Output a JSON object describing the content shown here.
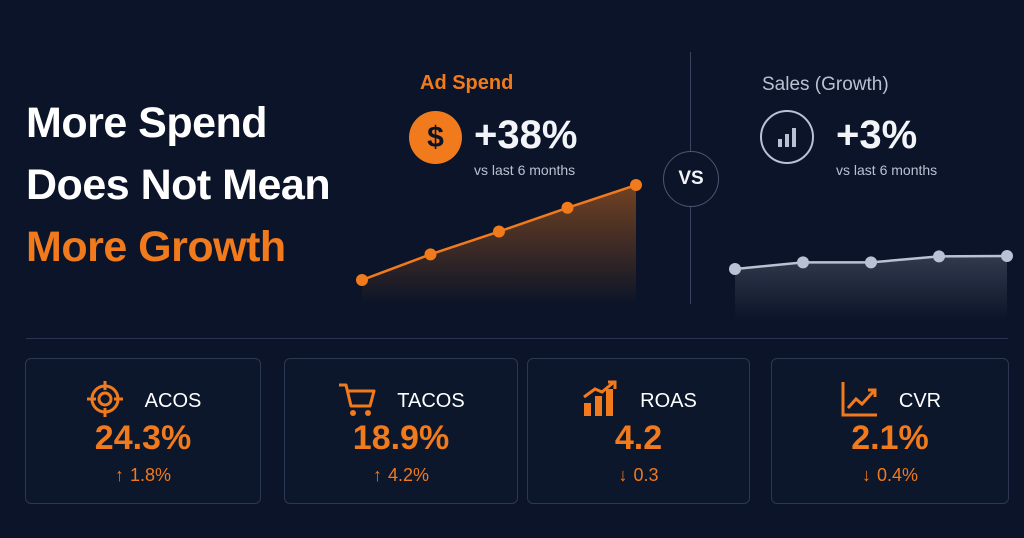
{
  "headline": {
    "line1": "More Spend",
    "line2": "Does Not Mean",
    "line3": "More Growth"
  },
  "vs_label": "VS",
  "ad_spend": {
    "title": "Ad Spend",
    "icon": "dollar-icon",
    "icon_glyph": "$",
    "change": "+38%",
    "period": "vs last 6 months",
    "color": "#f07a1c"
  },
  "sales": {
    "title": "Sales (Growth)",
    "icon": "bar-chart-icon",
    "change": "+3%",
    "period": "vs last 6 months",
    "color": "#b9c2d3"
  },
  "chart_data": [
    {
      "type": "area",
      "x": [
        1,
        2,
        3,
        4,
        5
      ],
      "values": [
        0,
        0.27,
        0.51,
        0.76,
        1
      ],
      "grid": false
    },
    {
      "type": "area",
      "x": [
        1,
        2,
        3,
        4,
        5
      ],
      "values": [
        0,
        0.51,
        0.51,
        0.97,
        1
      ],
      "grid": false
    }
  ],
  "metrics": [
    {
      "label": "ACOS",
      "icon": "target-icon",
      "value": "24.3%",
      "arrow": "↑",
      "delta": "1.8%"
    },
    {
      "label": "TACOS",
      "icon": "cart-icon",
      "value": "18.9%",
      "arrow": "↑",
      "delta": "4.2%"
    },
    {
      "label": "ROAS",
      "icon": "bar-chart-icon",
      "value": "4.2",
      "arrow": "↓",
      "delta": "0.3"
    },
    {
      "label": "CVR",
      "icon": "line-chart-icon",
      "value": "2.1%",
      "arrow": "↓",
      "delta": "0.4%"
    }
  ],
  "colors": {
    "background": "#0b1428",
    "accent": "#f07a1c",
    "muted": "#b9c2d3",
    "text": "#ffffff"
  }
}
